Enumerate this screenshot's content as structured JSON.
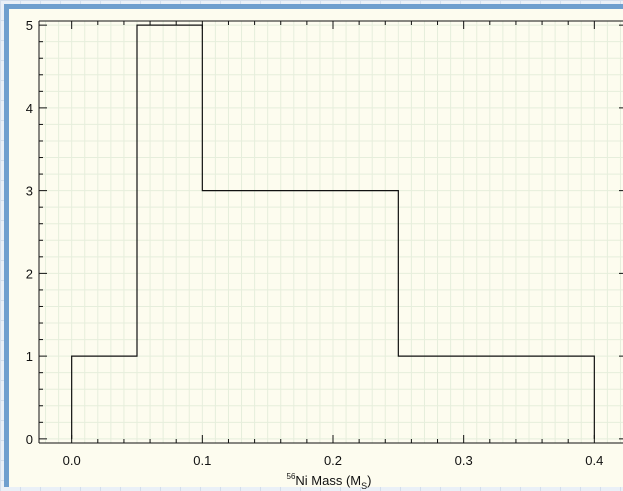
{
  "chart_data": {
    "type": "histogram",
    "title": "",
    "xlabel": {
      "sup": "56",
      "main": "Ni Mass (M",
      "sub": "S",
      "close": ")"
    },
    "ylabel": "",
    "xlim": [
      -0.025,
      0.425
    ],
    "ylim": [
      -0.05,
      5.05
    ],
    "xticks": [
      0.0,
      0.1,
      0.2,
      0.3,
      0.4
    ],
    "xtick_labels": [
      "0.0",
      "0.1",
      "0.2",
      "0.3",
      "0.4"
    ],
    "yticks": [
      0,
      1,
      2,
      3,
      4,
      5
    ],
    "ytick_labels": [
      "0",
      "1",
      "2",
      "3",
      "4",
      "5"
    ],
    "bins": [
      {
        "x0": 0.0,
        "x1": 0.05,
        "count": 1
      },
      {
        "x0": 0.05,
        "x1": 0.1,
        "count": 5
      },
      {
        "x0": 0.1,
        "x1": 0.25,
        "count": 3
      },
      {
        "x0": 0.25,
        "x1": 0.4,
        "count": 1
      }
    ],
    "grid": true,
    "colors": {
      "plot_background": "#fdfcef",
      "grid": "#e6eedc",
      "line": "#111111",
      "frame_border": "#6f9fce"
    }
  }
}
